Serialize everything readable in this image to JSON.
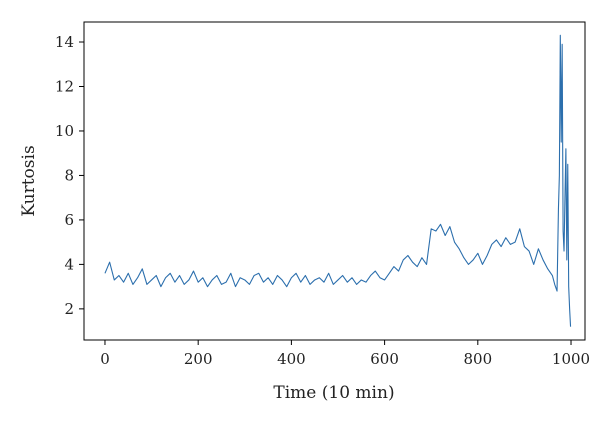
{
  "chart_data": {
    "type": "line",
    "xlabel": "Time (10 min)",
    "ylabel": "Kurtosis",
    "xlim": [
      -45,
      1030
    ],
    "ylim": [
      0.6,
      14.9
    ],
    "xticks": [
      0,
      200,
      400,
      600,
      800,
      1000
    ],
    "yticks": [
      2,
      4,
      6,
      8,
      10,
      12,
      14
    ],
    "grid": false,
    "legend": "none",
    "series": [
      {
        "color": "#2c6fad",
        "x": [
          0,
          10,
          20,
          30,
          40,
          50,
          60,
          70,
          80,
          90,
          100,
          110,
          120,
          130,
          140,
          150,
          160,
          170,
          180,
          190,
          200,
          210,
          220,
          230,
          240,
          250,
          260,
          270,
          280,
          290,
          300,
          310,
          320,
          330,
          340,
          350,
          360,
          370,
          380,
          390,
          400,
          410,
          420,
          430,
          440,
          450,
          460,
          470,
          480,
          490,
          500,
          510,
          520,
          530,
          540,
          550,
          560,
          570,
          580,
          590,
          600,
          610,
          620,
          630,
          640,
          650,
          660,
          670,
          680,
          690,
          700,
          710,
          720,
          730,
          740,
          750,
          760,
          770,
          780,
          790,
          800,
          810,
          820,
          830,
          840,
          850,
          860,
          870,
          880,
          890,
          900,
          910,
          920,
          930,
          940,
          950,
          960,
          965,
          970,
          973,
          975,
          977,
          979,
          981,
          983,
          985,
          987,
          989,
          991,
          993,
          995,
          997,
          999
        ],
        "y": [
          3.6,
          4.1,
          3.3,
          3.5,
          3.2,
          3.6,
          3.1,
          3.4,
          3.8,
          3.1,
          3.3,
          3.5,
          3.0,
          3.4,
          3.6,
          3.2,
          3.5,
          3.1,
          3.3,
          3.7,
          3.2,
          3.4,
          3.0,
          3.3,
          3.5,
          3.1,
          3.2,
          3.6,
          3.0,
          3.4,
          3.3,
          3.1,
          3.5,
          3.6,
          3.2,
          3.4,
          3.1,
          3.5,
          3.3,
          3.0,
          3.4,
          3.6,
          3.2,
          3.5,
          3.1,
          3.3,
          3.4,
          3.2,
          3.6,
          3.1,
          3.3,
          3.5,
          3.2,
          3.4,
          3.1,
          3.3,
          3.2,
          3.5,
          3.7,
          3.4,
          3.3,
          3.6,
          3.9,
          3.7,
          4.2,
          4.4,
          4.1,
          3.9,
          4.3,
          4.0,
          5.6,
          5.5,
          5.8,
          5.3,
          5.7,
          5.0,
          4.7,
          4.3,
          4.0,
          4.2,
          4.5,
          4.0,
          4.4,
          4.9,
          5.1,
          4.8,
          5.2,
          4.9,
          5.0,
          5.6,
          4.8,
          4.6,
          4.0,
          4.7,
          4.2,
          3.8,
          3.5,
          3.1,
          2.8,
          6.5,
          8.0,
          14.3,
          9.5,
          13.9,
          5.5,
          4.6,
          7.0,
          9.2,
          4.2,
          8.5,
          3.0,
          2.0,
          1.2
        ]
      }
    ]
  }
}
